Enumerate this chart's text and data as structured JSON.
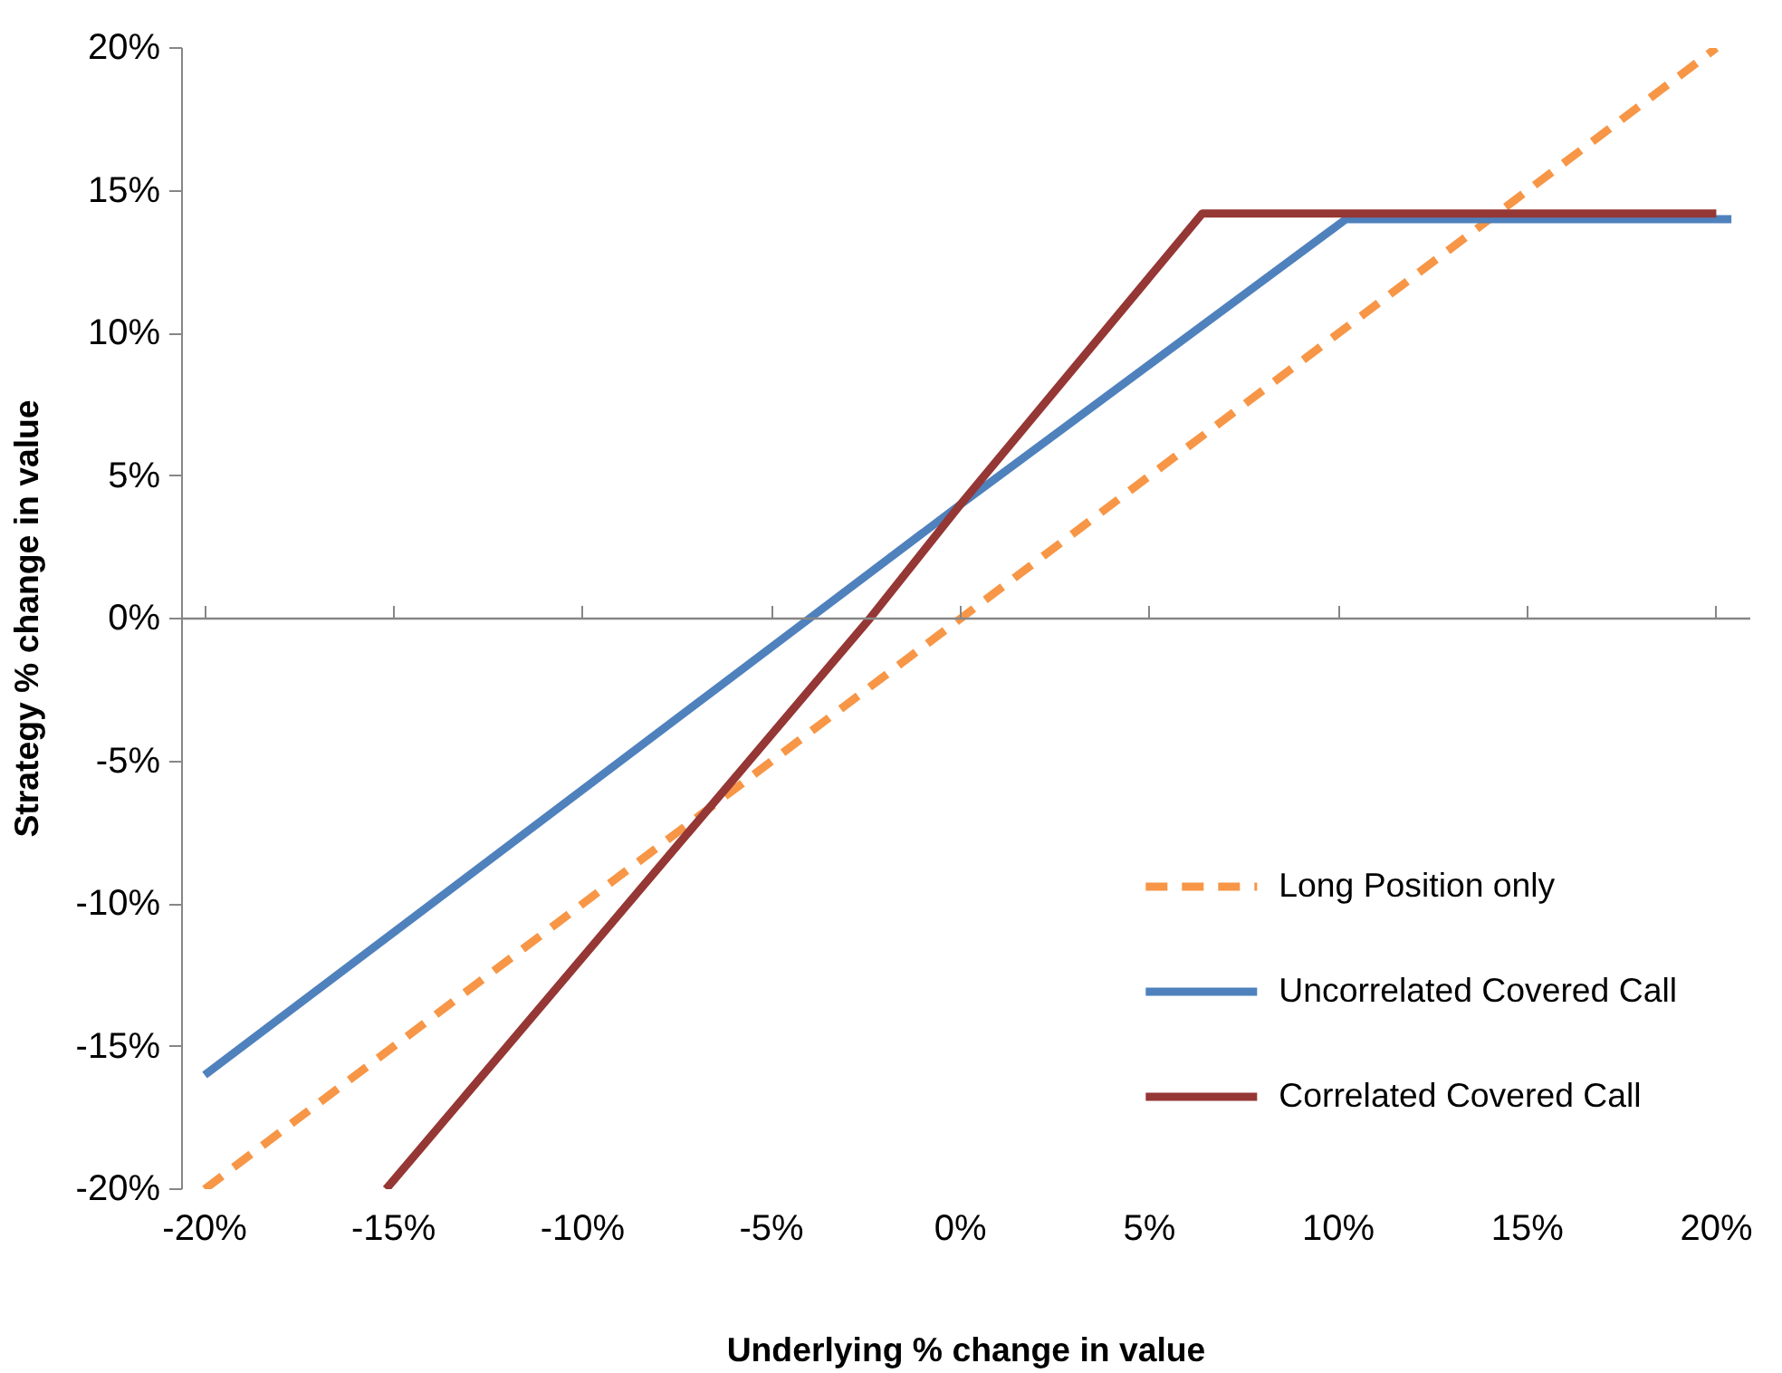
{
  "chart_data": {
    "type": "line",
    "xlabel": "Underlying % change in value",
    "ylabel": "Strategy % change in value",
    "xlim": [
      -20.6,
      20.9
    ],
    "ylim": [
      -20,
      20
    ],
    "xticks": [
      {
        "value": -20,
        "label": "-20%"
      },
      {
        "value": -15,
        "label": "-15%"
      },
      {
        "value": -10,
        "label": "-10%"
      },
      {
        "value": -5,
        "label": "-5%"
      },
      {
        "value": 0,
        "label": "0%"
      },
      {
        "value": 5,
        "label": "5%"
      },
      {
        "value": 10,
        "label": "10%"
      },
      {
        "value": 15,
        "label": "15%"
      },
      {
        "value": 20,
        "label": "20%"
      }
    ],
    "yticks": [
      {
        "value": -20,
        "label": "-20%"
      },
      {
        "value": -15,
        "label": "-15%"
      },
      {
        "value": -10,
        "label": "-10%"
      },
      {
        "value": -5,
        "label": "-5%"
      },
      {
        "value": 0,
        "label": "0%"
      },
      {
        "value": 5,
        "label": "5%"
      },
      {
        "value": 10,
        "label": "10%"
      },
      {
        "value": 15,
        "label": "15%"
      },
      {
        "value": 20,
        "label": "20%"
      }
    ],
    "grid": false,
    "legend": "bottom right",
    "ref_lines": [
      {
        "axis": "y",
        "value": 0,
        "color": "#868686"
      }
    ],
    "series": [
      {
        "name": "Long Position only",
        "color": "#f79646",
        "line_style": "dashed",
        "x": [
          -20,
          20
        ],
        "values": [
          -20,
          20
        ]
      },
      {
        "name": "Uncorrelated Covered Call",
        "color": "#4f81bd",
        "line_style": "solid",
        "x": [
          -20,
          -4,
          0,
          10.2,
          20.4
        ],
        "values": [
          -16,
          0,
          4,
          14,
          14
        ]
      },
      {
        "name": "Correlated Covered Call",
        "color": "#953735",
        "line_style": "solid",
        "x": [
          -15.2,
          -2.4,
          0,
          6.4,
          20
        ],
        "values": [
          -20,
          0,
          4,
          14.2,
          14.2
        ]
      }
    ]
  }
}
